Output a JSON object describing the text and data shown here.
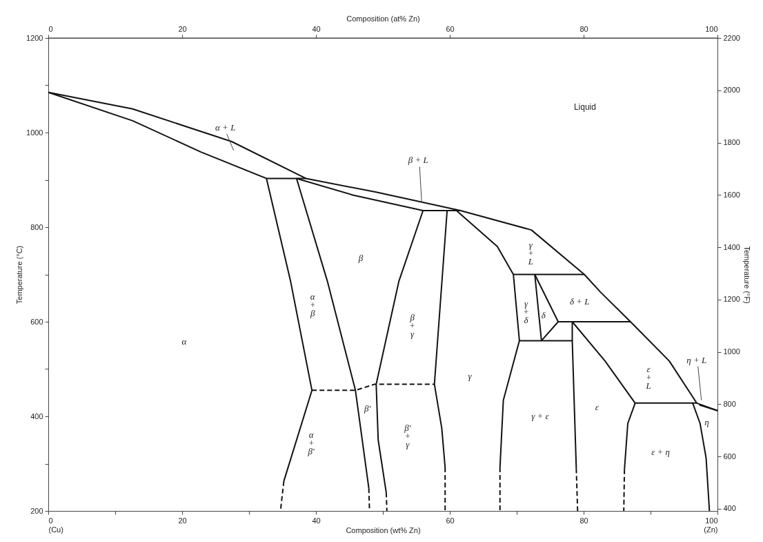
{
  "chart_data": {
    "type": "line",
    "xlabel": "Composition (wt% Zn)",
    "x2label": "Composition (at% Zn)",
    "ylabel": "Temperature (°C)",
    "y2label": "Temperature (°F)",
    "xlim": [
      0,
      100
    ],
    "xticks": [
      {
        "value": 0,
        "label": "0\n(Cu)"
      },
      {
        "value": 10,
        "label": null
      },
      20,
      {
        "value": 30,
        "label": null
      },
      40,
      {
        "value": 50,
        "label": null
      },
      60,
      {
        "value": 70,
        "label": null
      },
      80,
      {
        "value": 90,
        "label": null
      },
      {
        "value": 100,
        "label": "100\n(Zn)"
      }
    ],
    "x2lim": [
      0,
      100
    ],
    "x2ticks": [
      0,
      20,
      40,
      60,
      80,
      100
    ],
    "ylim": [
      200,
      1200
    ],
    "yticks": [
      200,
      {
        "value": 300,
        "label": null
      },
      400,
      {
        "value": 500,
        "label": null
      },
      600,
      {
        "value": 700,
        "label": null
      },
      800,
      {
        "value": 900,
        "label": null
      },
      1000,
      {
        "value": 1100,
        "label": null
      },
      1200
    ],
    "y2lim": [
      392,
      2200
    ],
    "y2ticks": [
      400,
      600,
      800,
      1000,
      1200,
      1400,
      1600,
      1800,
      2000,
      2200
    ],
    "grid": false,
    "marker": "none",
    "series": [
      {
        "color": "#111111",
        "line_style": "solid",
        "x": [
          0,
          12.6,
          27.4,
          38.5,
          49,
          61.6,
          72.2,
          80.1,
          82.5,
          87,
          92.8,
          96.9,
          100
        ],
        "values": [
          1085,
          1050,
          981,
          903,
          874,
          835,
          794,
          700,
          663,
          600,
          517,
          428,
          412
        ]
      },
      {
        "color": "#111111",
        "line_style": "solid",
        "x": [
          0,
          12.6,
          22.8,
          32.6,
          38.5
        ],
        "values": [
          1085,
          1025,
          959,
          903,
          903
        ]
      },
      {
        "color": "#111111",
        "line_style": "solid",
        "x": [
          37.1,
          45.5,
          56,
          61.6
        ],
        "values": [
          903,
          868,
          835,
          835
        ]
      },
      {
        "color": "#111111",
        "line_style": "solid",
        "x": [
          32.6,
          36.2,
          39.4,
          35.2
        ],
        "values": [
          903,
          686,
          455,
          263
        ]
      },
      {
        "color": "#111111",
        "line_style": "dashed",
        "x": [
          35.2,
          34.7
        ],
        "values": [
          263,
          200
        ]
      },
      {
        "color": "#111111",
        "line_style": "solid",
        "x": [
          37.1,
          41.7,
          45.9,
          47.9
        ],
        "values": [
          903,
          686,
          455,
          248
        ]
      },
      {
        "color": "#111111",
        "line_style": "dashed",
        "x": [
          47.9,
          48
        ],
        "values": [
          248,
          200
        ]
      },
      {
        "color": "#111111",
        "line_style": "dashed",
        "x": [
          39.4,
          45.9,
          48.8,
          57.7
        ],
        "values": [
          455,
          455,
          468,
          468
        ]
      },
      {
        "color": "#111111",
        "line_style": "solid",
        "x": [
          56,
          52.4,
          49,
          49.3,
          50.5
        ],
        "values": [
          835,
          686,
          468,
          350,
          239
        ]
      },
      {
        "color": "#111111",
        "line_style": "dashed",
        "x": [
          50.5,
          50.6
        ],
        "values": [
          239,
          200
        ]
      },
      {
        "color": "#111111",
        "line_style": "solid",
        "x": [
          59.6,
          57.7,
          58.8,
          59.3
        ],
        "values": [
          835,
          468,
          375,
          292
        ]
      },
      {
        "color": "#111111",
        "line_style": "dashed",
        "x": [
          59.3,
          59.3
        ],
        "values": [
          292,
          200
        ]
      },
      {
        "color": "#111111",
        "line_style": "solid",
        "x": [
          61,
          67.1,
          69.5,
          70.4,
          68,
          67.5
        ],
        "values": [
          835,
          759,
          700,
          560,
          434,
          292
        ]
      },
      {
        "color": "#111111",
        "line_style": "dashed",
        "x": [
          67.5,
          67.5
        ],
        "values": [
          292,
          200
        ]
      },
      {
        "color": "#111111",
        "line_style": "solid",
        "x": [
          69.5,
          80.1
        ],
        "values": [
          700,
          700
        ]
      },
      {
        "color": "#111111",
        "line_style": "solid",
        "x": [
          72.7,
          73.7
        ],
        "values": [
          700,
          560
        ]
      },
      {
        "color": "#111111",
        "line_style": "solid",
        "x": [
          72.7,
          76.2,
          73.7
        ],
        "values": [
          700,
          600,
          560
        ]
      },
      {
        "color": "#111111",
        "line_style": "solid",
        "x": [
          76.2,
          87
        ],
        "values": [
          600,
          600
        ]
      },
      {
        "color": "#111111",
        "line_style": "solid",
        "x": [
          70.4,
          78.3
        ],
        "values": [
          560,
          560
        ]
      },
      {
        "color": "#111111",
        "line_style": "solid",
        "x": [
          78.3,
          78.3,
          78.9
        ],
        "values": [
          600,
          560,
          290
        ]
      },
      {
        "color": "#111111",
        "line_style": "dashed",
        "x": [
          78.9,
          79.1
        ],
        "values": [
          290,
          200
        ]
      },
      {
        "color": "#111111",
        "line_style": "solid",
        "x": [
          78.3,
          83.2,
          87.7,
          96.9
        ],
        "values": [
          600,
          517,
          428,
          428
        ]
      },
      {
        "color": "#111111",
        "line_style": "solid",
        "x": [
          87.7,
          86.6,
          86.1
        ],
        "values": [
          428,
          385,
          288
        ]
      },
      {
        "color": "#111111",
        "line_style": "dashed",
        "x": [
          86.1,
          86
        ],
        "values": [
          288,
          200
        ]
      },
      {
        "color": "#111111",
        "line_style": "solid",
        "x": [
          96.3,
          97.4,
          98.3,
          98.8
        ],
        "values": [
          428,
          385,
          312,
          200
        ]
      },
      {
        "color": "#111111",
        "line_style": "solid",
        "x": [
          97.3,
          100
        ],
        "values": [
          424,
          412
        ]
      }
    ],
    "annotations": [
      {
        "text": "α + L",
        "x": 27.7,
        "y": 962
      },
      {
        "text": "β + L",
        "x": 55.8,
        "y": 852
      },
      {
        "text": "η + L",
        "x": 97.6,
        "y": 434
      },
      "Liquid",
      "α",
      "α\n+\nβ",
      "β",
      "β\n+\nγ",
      "γ",
      "β′",
      "α\n+\nβ′",
      "β′\n+\nγ",
      "γ\n+\nL",
      "γ\n+\nδ",
      "δ",
      "δ + L",
      "ε\n+\nL",
      "γ + ε",
      "ε",
      "η",
      "ε + η"
    ]
  }
}
